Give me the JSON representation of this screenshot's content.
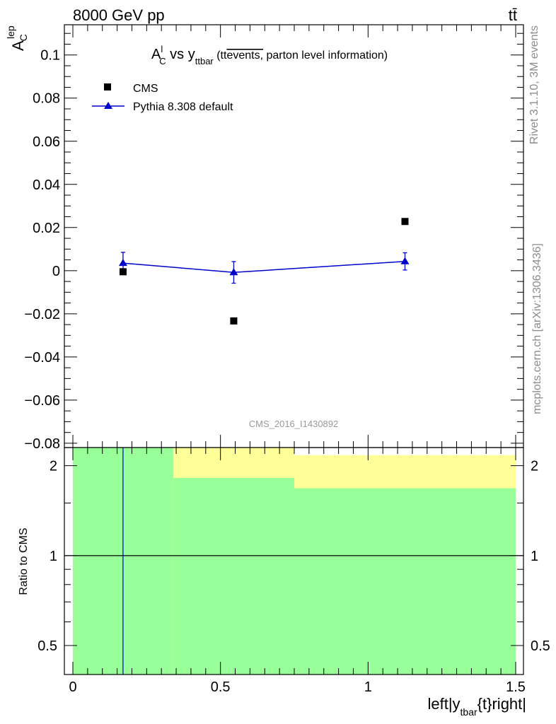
{
  "header": {
    "energy": "8000 GeV pp",
    "process": "tt̄"
  },
  "side_labels": {
    "rivet": "Rivet 3.1.10,  3M events",
    "source": "mcplots.cern.ch [arXiv:1306.3436]"
  },
  "chart_data": [
    {
      "type": "scatter",
      "title": {
        "main": "A",
        "main_sup": "l",
        "main_sub": "C",
        "vs": " vs y",
        "vs_sub": "ttbar",
        "paren_open": " (tt",
        "overline": "events,",
        "paren_rest": " parton level information)"
      },
      "ylabel": {
        "base": "A",
        "sup": "lep",
        "sub": "C"
      },
      "watermark": "CMS_2016_I1430892",
      "xlim": [
        0,
        1.5
      ],
      "ylim": [
        -0.082,
        0.114
      ],
      "y_ticks": [
        -0.08,
        -0.06,
        -0.04,
        -0.02,
        0,
        0.02,
        0.04,
        0.06,
        0.08,
        0.1
      ],
      "y_tick_labels": [
        "−0.08",
        "−0.06",
        "−0.04",
        "−0.02",
        "0",
        "0.02",
        "0.04",
        "0.06",
        "0.08",
        "0.1"
      ],
      "legend_position": "top-left",
      "series": [
        {
          "name": "CMS",
          "marker": "square",
          "color": "#000000",
          "x": [
            0.17,
            0.545,
            1.125
          ],
          "y": [
            -0.0005,
            -0.0233,
            0.0228
          ]
        },
        {
          "name": "Pythia 8.308 default",
          "marker": "triangle",
          "color": "#0000cc",
          "x": [
            0.17,
            0.545,
            1.125
          ],
          "y": [
            0.0035,
            -0.0008,
            0.0043
          ],
          "yerr": [
            0.005,
            0.005,
            0.004
          ]
        }
      ]
    },
    {
      "type": "area",
      "ylabel": "Ratio to CMS",
      "xlabel": {
        "pre": "left|y",
        "sub": "tbar",
        "post": "{t}right|"
      },
      "xlim": [
        0,
        1.5
      ],
      "ylim": [
        0.4,
        2.3
      ],
      "log_y": true,
      "y_ticks": [
        0.5,
        1,
        2
      ],
      "y_tick_labels": [
        "0.5",
        "1",
        "2"
      ],
      "x_ticks": [
        0,
        0.5,
        1,
        1.5
      ],
      "x_tick_labels": [
        "0",
        "0.5",
        "1",
        "1.5"
      ],
      "bins": [
        [
          0,
          0.34
        ],
        [
          0.34,
          0.75
        ],
        [
          0.75,
          1.5
        ]
      ],
      "band_green_upper": [
        2.3,
        1.82,
        1.68
      ],
      "band_yellow_upper": [
        2.3,
        2.3,
        2.17
      ],
      "band_lower": 0.4,
      "reference_line": 1,
      "pythia_vertical_x": 0.17,
      "colors": {
        "green": "#99ff99",
        "yellow": "#ffff99",
        "line": "#0000cc"
      }
    }
  ]
}
